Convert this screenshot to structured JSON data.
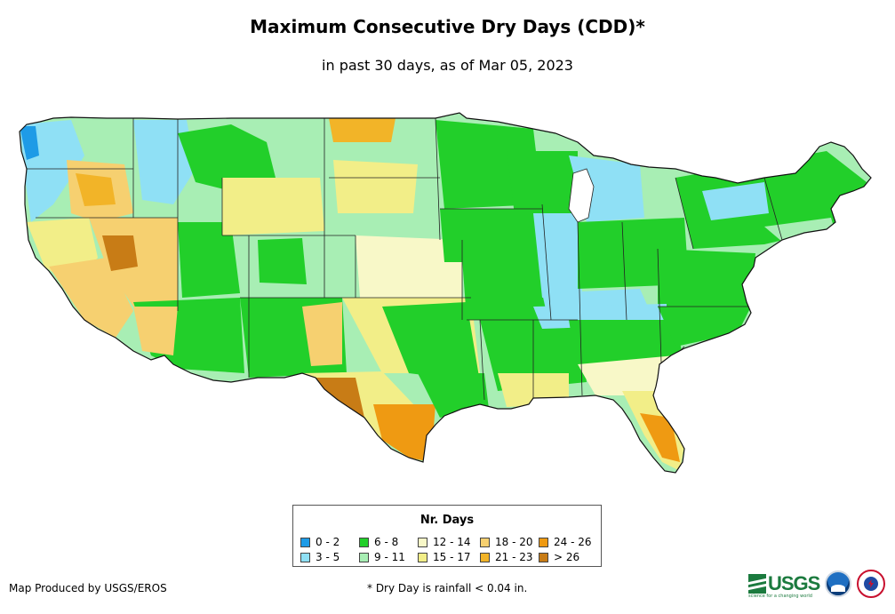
{
  "title": "Maximum Consecutive Dry Days (CDD)*",
  "subtitle": "in past 30 days, as of Mar 05, 2023",
  "legend": {
    "title": "Nr. Days",
    "items": [
      {
        "label": "0 - 2",
        "color": "#1e9be6"
      },
      {
        "label": "3 - 5",
        "color": "#8fe0f5"
      },
      {
        "label": "6 - 8",
        "color": "#22cf2a"
      },
      {
        "label": "9 - 11",
        "color": "#a8eeb4"
      },
      {
        "label": "12 - 14",
        "color": "#f8f8c8"
      },
      {
        "label": "15 - 17",
        "color": "#f2ee88"
      },
      {
        "label": "18 - 20",
        "color": "#f6d070"
      },
      {
        "label": "21 - 23",
        "color": "#f2b428"
      },
      {
        "label": "24 - 26",
        "color": "#ef9a12"
      },
      {
        "label": "> 26",
        "color": "#c87c16"
      }
    ]
  },
  "footer": {
    "produced_by": "Map Produced by USGS/EROS",
    "note": "* Dry Day is rainfall < 0.04 in."
  },
  "logos": {
    "usgs_text": "USGS",
    "usgs_tagline": "science for a changing world",
    "noaa": "noaa-logo",
    "nws": "nws-logo"
  }
}
